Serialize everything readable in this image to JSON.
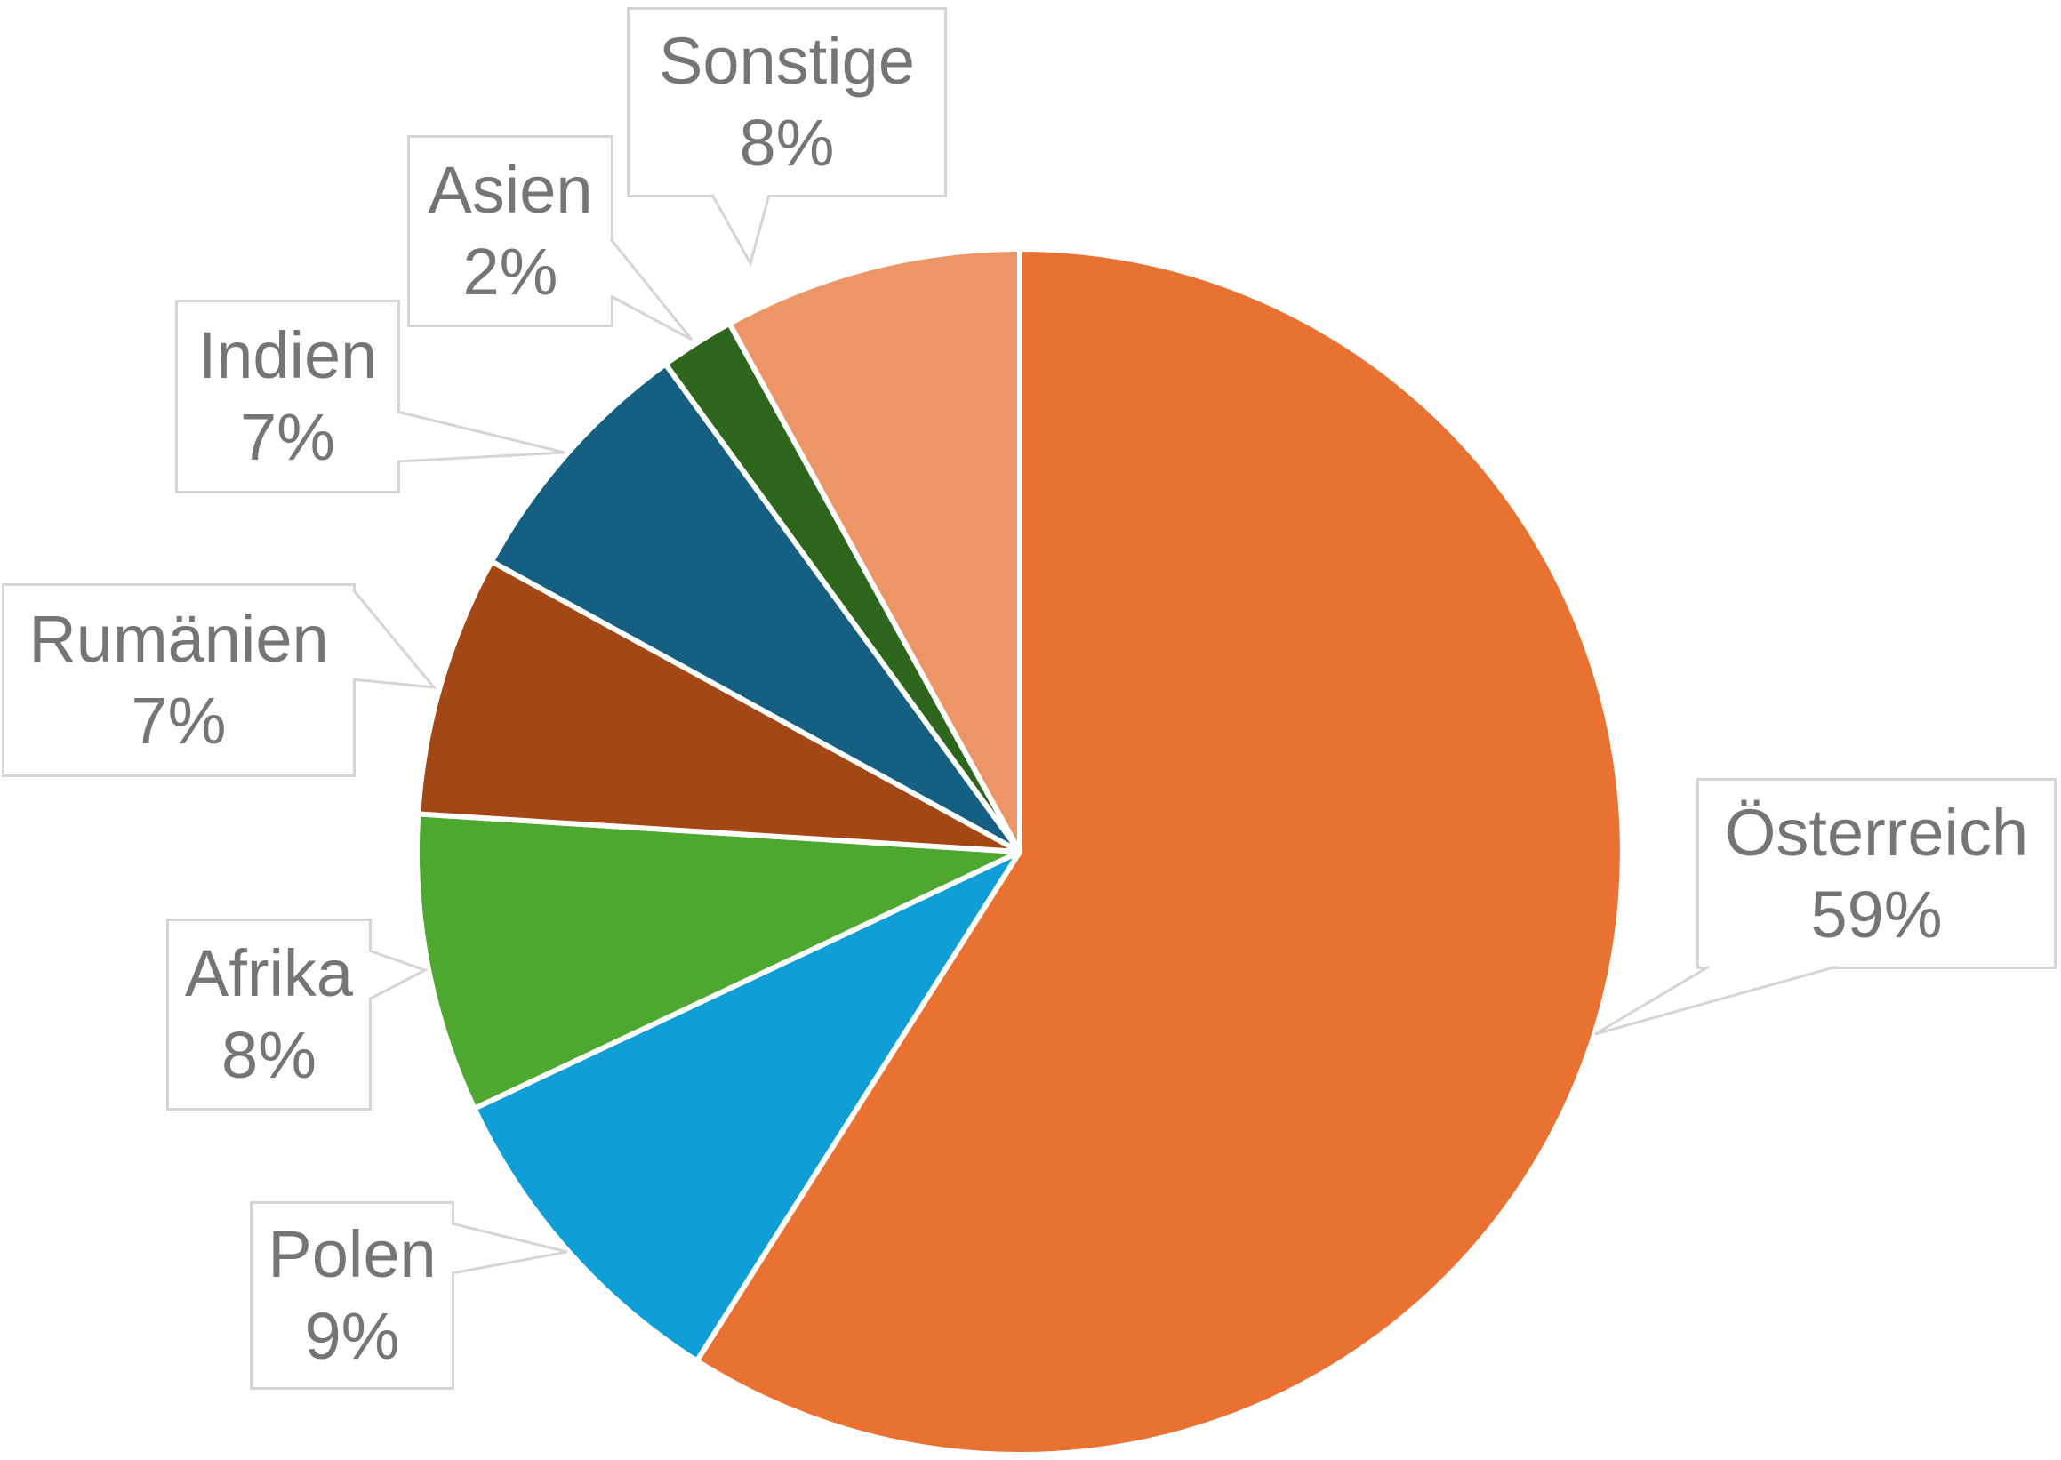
{
  "chart_data": {
    "type": "pie",
    "title": "",
    "unit": "percent",
    "total": 100,
    "start_angle_deg": 0,
    "direction": "clockwise",
    "gridlines": false,
    "legend_position": "none",
    "label_style": "callout-boxes-with-leader-lines",
    "categories": [
      "Österreich",
      "Polen",
      "Afrika",
      "Rumänien",
      "Indien",
      "Asien",
      "Sonstige"
    ],
    "values": [
      59,
      9,
      8,
      7,
      7,
      2,
      8
    ],
    "slices": [
      {
        "label": "Österreich",
        "value": 59,
        "pct_label": "59%",
        "color": "#E97132"
      },
      {
        "label": "Polen",
        "value": 9,
        "pct_label": "9%",
        "color": "#0F9ED5"
      },
      {
        "label": "Afrika",
        "value": 8,
        "pct_label": "8%",
        "color": "#4EA72E"
      },
      {
        "label": "Rumänien",
        "value": 7,
        "pct_label": "7%",
        "color": "#A34715"
      },
      {
        "label": "Indien",
        "value": 7,
        "pct_label": "7%",
        "color": "#156082"
      },
      {
        "label": "Asien",
        "value": 2,
        "pct_label": "2%",
        "color": "#2F661E"
      },
      {
        "label": "Sonstige",
        "value": 8,
        "pct_label": "8%",
        "color": "#EE9568"
      }
    ]
  },
  "style": {
    "background": "#FFFFFF",
    "label_text_color": "#757575",
    "callout_border_color": "#D5D5D5",
    "callout_fill": "#FFFFFF",
    "slice_separator_color": "#FFFFFF"
  }
}
